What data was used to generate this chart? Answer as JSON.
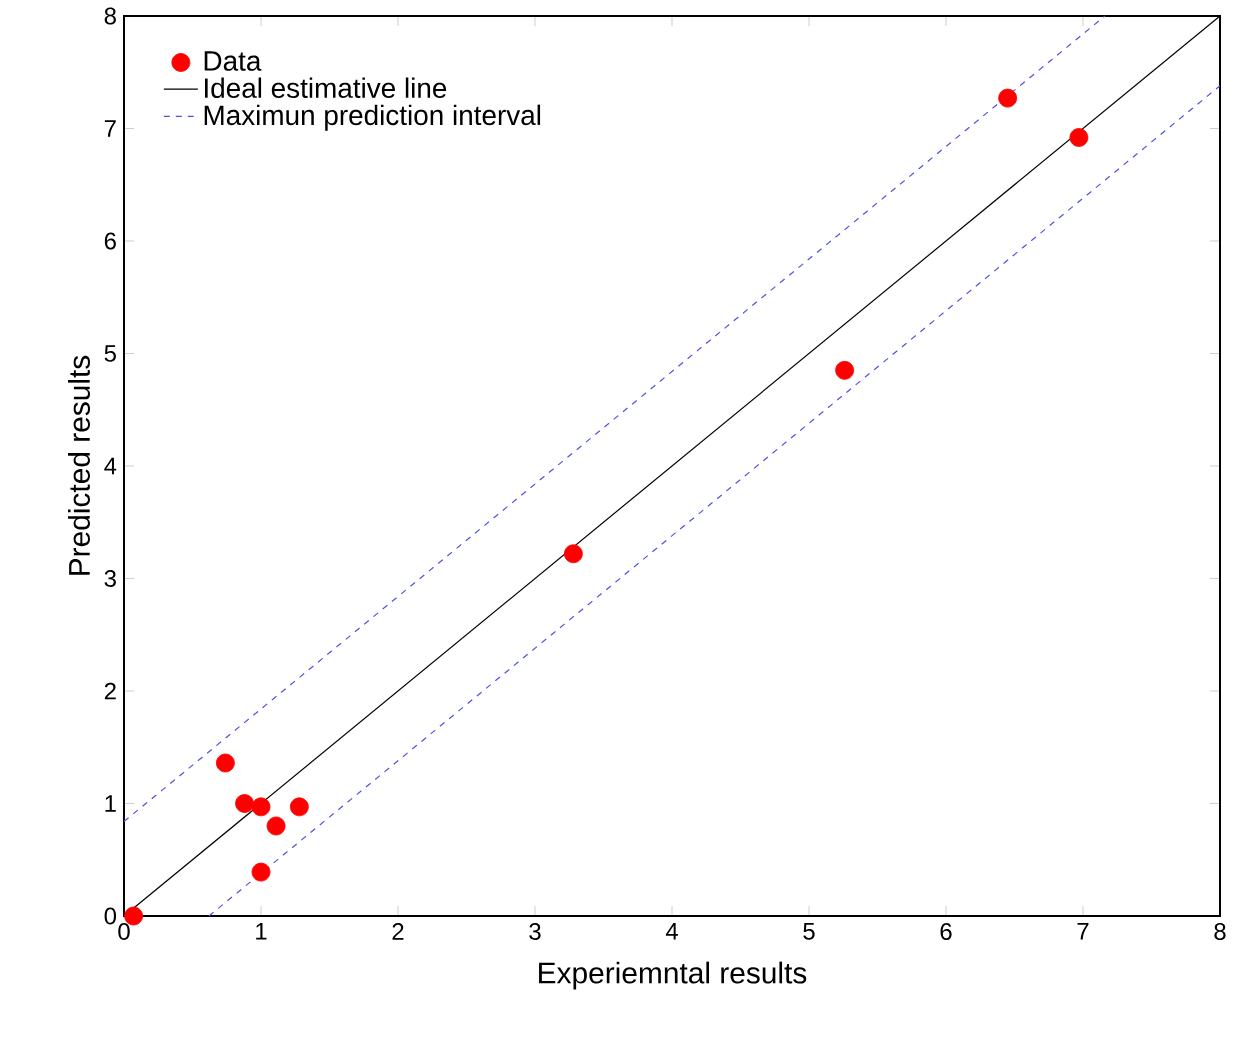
{
  "chart_data": {
    "type": "scatter",
    "xlabel": "Experiemntal results",
    "ylabel": "Predicted results",
    "xlim": [
      0,
      8
    ],
    "ylim": [
      0,
      8
    ],
    "xticks": [
      0,
      1,
      2,
      3,
      4,
      5,
      6,
      7,
      8
    ],
    "yticks": [
      0,
      1,
      2,
      3,
      4,
      5,
      6,
      7,
      8
    ],
    "legend": "top left",
    "series": [
      {
        "name": "Data",
        "marker": "circle",
        "color": "#ff0000",
        "x": [
          0.07,
          0.74,
          0.88,
          1.0,
          1.11,
          1.28,
          1.0,
          3.28,
          5.26,
          6.45,
          6.97
        ],
        "values": [
          0,
          1.36,
          1.0,
          0.97,
          0.8,
          0.97,
          0.39,
          3.22,
          4.85,
          7.27,
          6.92
        ]
      },
      {
        "name": "Ideal estimative line",
        "type": "line",
        "marker": "none",
        "line_style": "solid",
        "color": "#000000",
        "x": [
          0,
          8
        ],
        "values": [
          0,
          8
        ]
      },
      {
        "name": "Maximun prediction interval",
        "type": "line",
        "marker": "none",
        "line_style": "dashed",
        "color": "#5050e6",
        "x": [
          0,
          7.16,
          null,
          0.62,
          8
        ],
        "values": [
          0.84,
          8,
          null,
          0,
          7.38
        ]
      }
    ]
  }
}
